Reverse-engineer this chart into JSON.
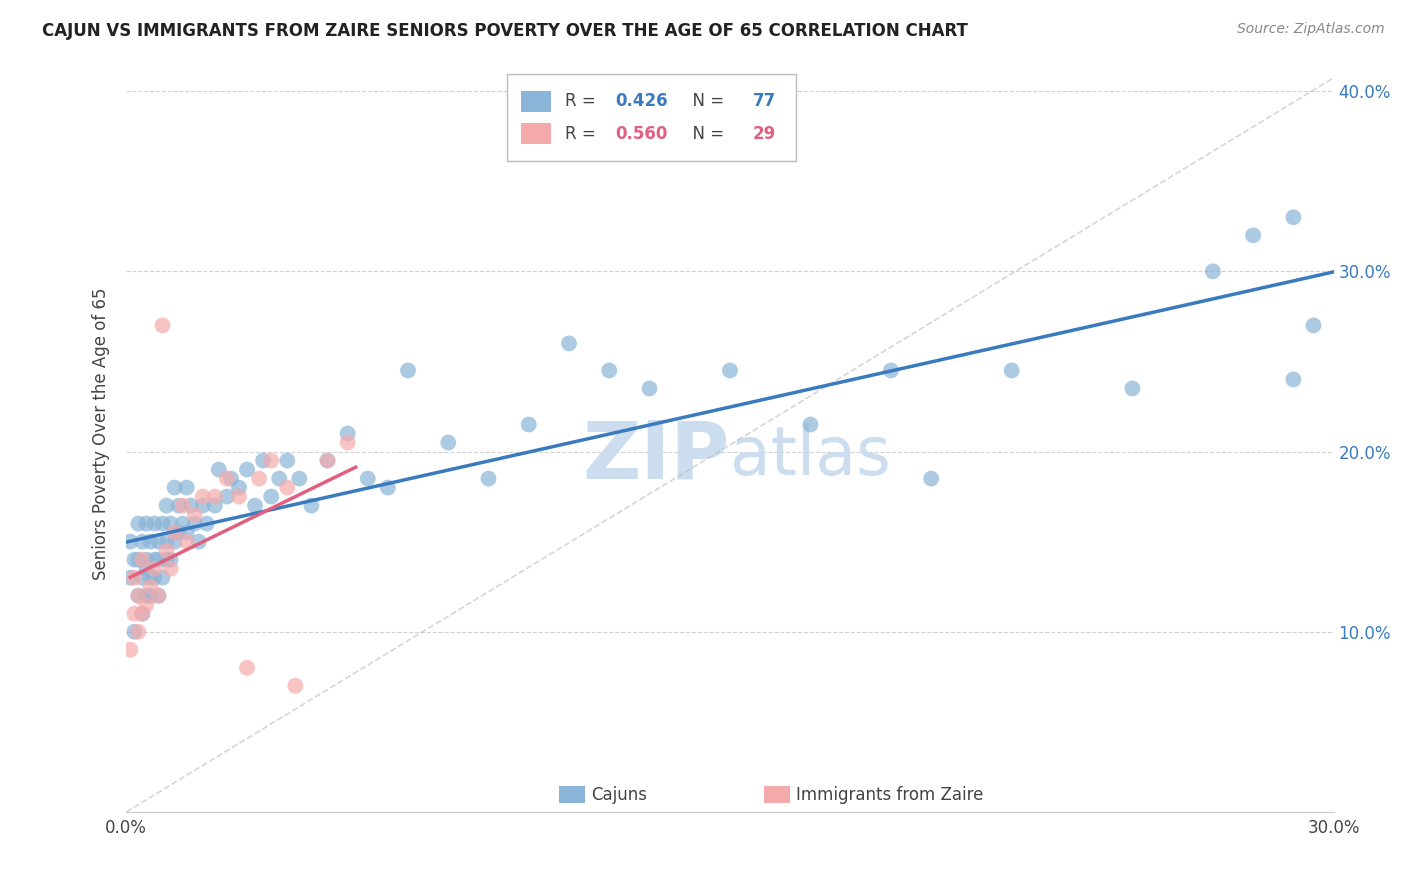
{
  "title": "CAJUN VS IMMIGRANTS FROM ZAIRE SENIORS POVERTY OVER THE AGE OF 65 CORRELATION CHART",
  "source": "Source: ZipAtlas.com",
  "ylabel": "Seniors Poverty Over the Age of 65",
  "legend_cajun": "Cajuns",
  "legend_zaire": "Immigrants from Zaire",
  "r_cajun": 0.426,
  "n_cajun": 77,
  "r_zaire": 0.56,
  "n_zaire": 29,
  "xmin": 0.0,
  "xmax": 0.3,
  "ymin": 0.0,
  "ymax": 0.42,
  "color_cajun": "#8ab4d8",
  "color_zaire": "#f4aaaa",
  "color_cajun_line": "#3a7abf",
  "color_zaire_line": "#e06080",
  "background_color": "#ffffff",
  "watermark_color": "#ccddef",
  "cajun_x": [
    0.001,
    0.001,
    0.002,
    0.002,
    0.003,
    0.003,
    0.003,
    0.004,
    0.004,
    0.004,
    0.005,
    0.005,
    0.005,
    0.005,
    0.006,
    0.006,
    0.006,
    0.007,
    0.007,
    0.007,
    0.008,
    0.008,
    0.008,
    0.009,
    0.009,
    0.01,
    0.01,
    0.01,
    0.011,
    0.011,
    0.012,
    0.012,
    0.013,
    0.013,
    0.014,
    0.015,
    0.015,
    0.016,
    0.017,
    0.018,
    0.019,
    0.02,
    0.022,
    0.023,
    0.025,
    0.026,
    0.028,
    0.03,
    0.032,
    0.034,
    0.036,
    0.038,
    0.04,
    0.043,
    0.046,
    0.05,
    0.055,
    0.06,
    0.065,
    0.07,
    0.08,
    0.09,
    0.1,
    0.11,
    0.12,
    0.13,
    0.15,
    0.17,
    0.19,
    0.2,
    0.22,
    0.25,
    0.27,
    0.28,
    0.29,
    0.29,
    0.295
  ],
  "cajun_y": [
    0.13,
    0.15,
    0.1,
    0.14,
    0.14,
    0.12,
    0.16,
    0.13,
    0.15,
    0.11,
    0.12,
    0.14,
    0.16,
    0.135,
    0.13,
    0.15,
    0.12,
    0.14,
    0.16,
    0.13,
    0.14,
    0.12,
    0.15,
    0.13,
    0.16,
    0.14,
    0.15,
    0.17,
    0.14,
    0.16,
    0.15,
    0.18,
    0.155,
    0.17,
    0.16,
    0.155,
    0.18,
    0.17,
    0.16,
    0.15,
    0.17,
    0.16,
    0.17,
    0.19,
    0.175,
    0.185,
    0.18,
    0.19,
    0.17,
    0.195,
    0.175,
    0.185,
    0.195,
    0.185,
    0.17,
    0.195,
    0.21,
    0.185,
    0.18,
    0.245,
    0.205,
    0.185,
    0.215,
    0.26,
    0.245,
    0.235,
    0.245,
    0.215,
    0.245,
    0.185,
    0.245,
    0.235,
    0.3,
    0.32,
    0.33,
    0.24,
    0.27
  ],
  "zaire_x": [
    0.001,
    0.002,
    0.002,
    0.003,
    0.003,
    0.004,
    0.004,
    0.005,
    0.006,
    0.007,
    0.008,
    0.009,
    0.01,
    0.011,
    0.012,
    0.014,
    0.015,
    0.017,
    0.019,
    0.022,
    0.025,
    0.028,
    0.03,
    0.033,
    0.036,
    0.04,
    0.042,
    0.05,
    0.055
  ],
  "zaire_y": [
    0.09,
    0.11,
    0.13,
    0.1,
    0.12,
    0.11,
    0.14,
    0.115,
    0.125,
    0.135,
    0.12,
    0.27,
    0.145,
    0.135,
    0.155,
    0.17,
    0.15,
    0.165,
    0.175,
    0.175,
    0.185,
    0.175,
    0.08,
    0.185,
    0.195,
    0.18,
    0.07,
    0.195,
    0.205
  ]
}
